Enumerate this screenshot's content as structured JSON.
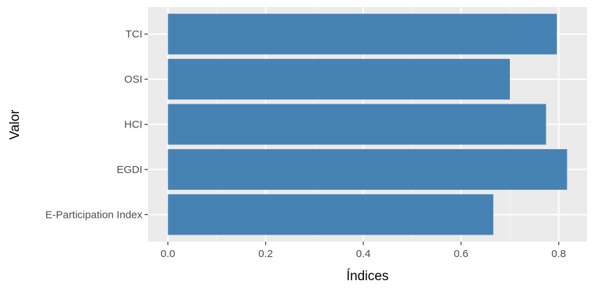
{
  "chart_data": {
    "type": "bar",
    "orientation": "horizontal",
    "categories": [
      "E-Participation Index",
      "EGDI",
      "HCI",
      "OSI",
      "TCI"
    ],
    "values": [
      0.666,
      0.817,
      0.774,
      0.7,
      0.796
    ],
    "xlabel": "Índices",
    "ylabel": "Valor",
    "xlim": [
      -0.0408,
      0.8578
    ],
    "xticks": [
      0.0,
      0.2,
      0.4,
      0.6,
      0.8
    ],
    "xtick_labels": [
      "0.0",
      "0.2",
      "0.4",
      "0.6",
      "0.8"
    ],
    "grid": true,
    "legend": "none",
    "colors": {
      "bar": "#4682b4",
      "panel": "#ebebeb",
      "grid_major": "#ffffff",
      "grid_minor": "#f5f5f5",
      "tick_text": "#4d4d4d",
      "tick_mark": "#333333"
    }
  }
}
